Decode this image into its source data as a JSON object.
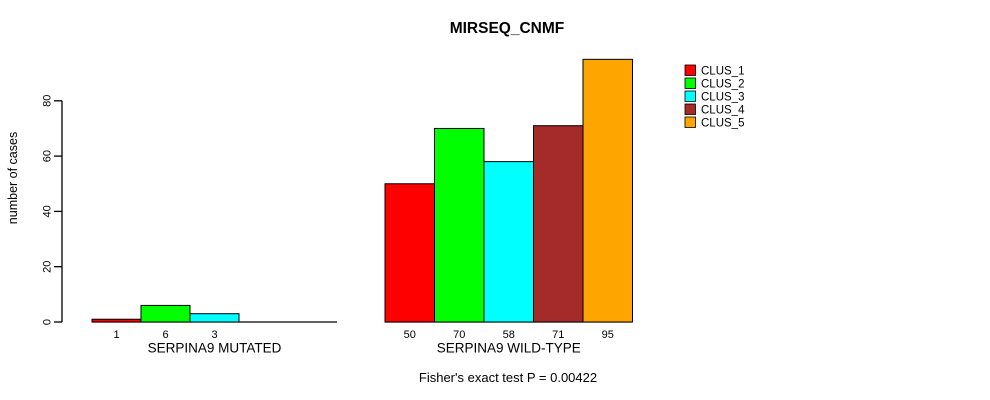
{
  "chart_data": {
    "type": "bar",
    "title": "MIRSEQ_CNMF",
    "ylabel": "number of cases",
    "xlabel": "",
    "yticks": [
      0,
      20,
      40,
      60,
      80
    ],
    "ylim": [
      0,
      95
    ],
    "grid": false,
    "legend_position": "right",
    "legend": [
      "CLUS_1",
      "CLUS_2",
      "CLUS_3",
      "CLUS_4",
      "CLUS_5"
    ],
    "series_colors": {
      "CLUS_1": "#FF0000",
      "CLUS_2": "#00FF00",
      "CLUS_3": "#00FFFF",
      "CLUS_4": "#A52A2A",
      "CLUS_5": "#FFA500"
    },
    "groups": [
      {
        "label": "SERPINA9 MUTATED",
        "categories": [
          "CLUS_1",
          "CLUS_2",
          "CLUS_3",
          "CLUS_4",
          "CLUS_5"
        ],
        "values": [
          1,
          6,
          3,
          0,
          0
        ],
        "value_labels": [
          "1",
          "6",
          "3",
          null,
          null
        ]
      },
      {
        "label": "SERPINA9 WILD-TYPE",
        "categories": [
          "CLUS_1",
          "CLUS_2",
          "CLUS_3",
          "CLUS_4",
          "CLUS_5"
        ],
        "values": [
          50,
          70,
          58,
          71,
          95
        ],
        "value_labels": [
          "50",
          "70",
          "58",
          "71",
          "95"
        ]
      }
    ],
    "annotation": "Fisher's exact test P = 0.00422",
    "axis_color": "#000000",
    "text_color": "#000000",
    "background_color": "#FFFFFF"
  }
}
